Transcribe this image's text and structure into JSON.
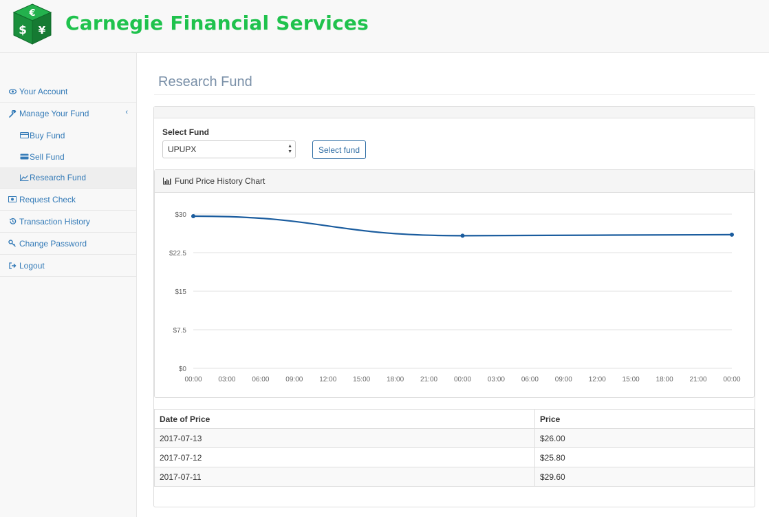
{
  "brand": {
    "name": "Carnegie Financial Services",
    "logo_symbols": [
      "€",
      "$",
      "¥"
    ]
  },
  "sidebar": {
    "items": [
      {
        "label": "Your Account",
        "icon": "eye-icon"
      },
      {
        "label": "Manage Your Fund",
        "icon": "wrench-icon"
      },
      {
        "label": "Buy Fund",
        "icon": "credit-card-icon"
      },
      {
        "label": "Sell Fund",
        "icon": "credit-card-icon"
      },
      {
        "label": "Research Fund",
        "icon": "line-chart-icon"
      },
      {
        "label": "Request Check",
        "icon": "money-icon"
      },
      {
        "label": "Transaction History",
        "icon": "history-icon"
      },
      {
        "label": "Change Password",
        "icon": "key-icon"
      },
      {
        "label": "Logout",
        "icon": "sign-out-icon"
      }
    ]
  },
  "page": {
    "title": "Research Fund"
  },
  "form": {
    "select_label": "Select Fund",
    "select_value": "UPUPX",
    "button_label": "Select fund"
  },
  "chart": {
    "header": "Fund Price History Chart"
  },
  "chart_data": {
    "type": "line",
    "title": "",
    "xlabel": "",
    "ylabel": "",
    "y_ticks": [
      "$0",
      "$7.5",
      "$15",
      "$22.5",
      "$30"
    ],
    "x_ticks": [
      "00:00",
      "03:00",
      "06:00",
      "09:00",
      "12:00",
      "15:00",
      "18:00",
      "21:00",
      "00:00",
      "03:00",
      "06:00",
      "09:00",
      "12:00",
      "15:00",
      "18:00",
      "21:00",
      "00:00"
    ],
    "ylim": [
      0,
      30
    ],
    "x": [
      "2017-07-11",
      "2017-07-12",
      "2017-07-13"
    ],
    "series": [
      {
        "values": [
          29.6,
          25.8,
          26.0
        ]
      }
    ],
    "grid": true,
    "colors": {
      "line": "#1a5c9e",
      "grid": "#e0e0e0"
    }
  },
  "table": {
    "headers": [
      "Date of Price",
      "Price"
    ],
    "rows": [
      [
        "2017-07-13",
        "$26.00"
      ],
      [
        "2017-07-12",
        "$25.80"
      ],
      [
        "2017-07-11",
        "$29.60"
      ]
    ]
  }
}
